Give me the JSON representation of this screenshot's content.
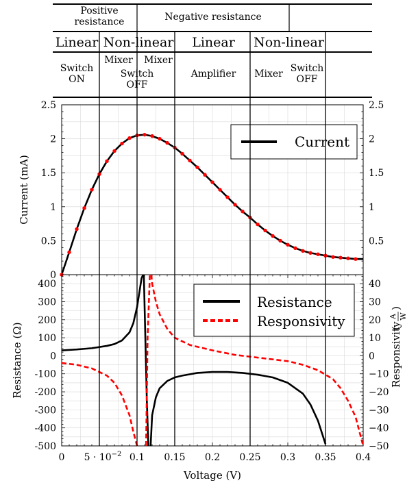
{
  "header": {
    "row1": [
      {
        "id": "positive",
        "text": "Positive resistance"
      },
      {
        "id": "negative",
        "text": "Negative resistance"
      }
    ],
    "row2": [
      "Linear",
      "Non-linear",
      "Linear",
      "Non-linear"
    ],
    "row3": [
      {
        "id": "switch-on",
        "text": "Switch ON"
      },
      {
        "id": "mixer-left",
        "text": "Mixer"
      },
      {
        "id": "mixer-right",
        "text": "Mixer"
      },
      {
        "id": "switch-off-left",
        "text": "Switch OFF"
      },
      {
        "id": "amplifier",
        "text": "Amplifier"
      },
      {
        "id": "mixer-3",
        "text": "Mixer"
      },
      {
        "id": "switch-off-right",
        "text": "Switch OFF"
      }
    ]
  },
  "chart_data": [
    {
      "type": "line",
      "ylabel": "Current (mA)",
      "ylim": [
        0,
        2.5
      ],
      "xlim": [
        0,
        0.4
      ],
      "yticks": [
        "0",
        "0.5",
        "1",
        "1.5",
        "2",
        "2.5"
      ],
      "right_yticks": [
        "0.5",
        "1",
        "1.5",
        "2",
        "2.5"
      ],
      "legend_position": "upper-right",
      "series": [
        {
          "name": "Current",
          "style": "solid",
          "color": "#000000",
          "x": [
            0,
            0.01,
            0.02,
            0.03,
            0.04,
            0.05,
            0.06,
            0.07,
            0.08,
            0.09,
            0.1,
            0.11,
            0.12,
            0.13,
            0.14,
            0.15,
            0.16,
            0.17,
            0.18,
            0.19,
            0.2,
            0.21,
            0.22,
            0.23,
            0.24,
            0.25,
            0.26,
            0.27,
            0.28,
            0.29,
            0.3,
            0.31,
            0.32,
            0.33,
            0.34,
            0.35,
            0.36,
            0.37,
            0.38,
            0.39,
            0.4
          ],
          "values": [
            0,
            0.33,
            0.67,
            0.98,
            1.25,
            1.48,
            1.67,
            1.82,
            1.93,
            2.01,
            2.05,
            2.06,
            2.04,
            2.0,
            1.94,
            1.87,
            1.78,
            1.68,
            1.58,
            1.47,
            1.36,
            1.25,
            1.14,
            1.03,
            0.93,
            0.84,
            0.74,
            0.65,
            0.57,
            0.5,
            0.44,
            0.39,
            0.35,
            0.32,
            0.3,
            0.28,
            0.26,
            0.25,
            0.24,
            0.23,
            0.23
          ]
        },
        {
          "name": "",
          "style": "markers",
          "color": "#ff0000",
          "x": [
            0,
            0.01,
            0.02,
            0.03,
            0.04,
            0.05,
            0.06,
            0.07,
            0.08,
            0.09,
            0.1,
            0.11,
            0.12,
            0.13,
            0.14,
            0.15,
            0.16,
            0.17,
            0.18,
            0.19,
            0.2,
            0.21,
            0.22,
            0.23,
            0.24,
            0.25,
            0.26,
            0.27,
            0.28,
            0.29,
            0.3,
            0.31,
            0.32,
            0.33,
            0.34,
            0.35,
            0.36,
            0.37,
            0.38,
            0.39
          ],
          "values": [
            0,
            0.33,
            0.67,
            0.98,
            1.25,
            1.48,
            1.67,
            1.82,
            1.93,
            2.01,
            2.05,
            2.06,
            2.04,
            2.0,
            1.94,
            1.87,
            1.78,
            1.68,
            1.58,
            1.47,
            1.36,
            1.25,
            1.14,
            1.03,
            0.93,
            0.84,
            0.74,
            0.65,
            0.57,
            0.5,
            0.44,
            0.39,
            0.35,
            0.32,
            0.3,
            0.28,
            0.26,
            0.25,
            0.24,
            0.23
          ]
        }
      ]
    },
    {
      "type": "line",
      "xlabel": "Voltage (V)",
      "ylabel": "Resistance (Ω)",
      "right_ylabel_text": "Responsivity",
      "right_ylabel_unit_num": "A",
      "right_ylabel_unit_den": "W",
      "ylim": [
        -500,
        450
      ],
      "right_ylim": [
        -50,
        45
      ],
      "xlim": [
        0,
        0.4
      ],
      "yticks": [
        "400",
        "300",
        "200",
        "100",
        "0",
        "-100",
        "-200",
        "-300",
        "-400",
        "-500"
      ],
      "right_yticks": [
        "40",
        "30",
        "20",
        "10",
        "0",
        "−10",
        "−20",
        "−30",
        "−40",
        "−50"
      ],
      "xticks": [
        "0",
        "5 · 10",
        "0.1",
        "0.15",
        "0.2",
        "0.25",
        "0.3",
        "0.35",
        "0.4"
      ],
      "xtick_exponent": "−2",
      "legend_position": "upper-right",
      "series": [
        {
          "name": "Resistance",
          "style": "solid",
          "color": "#000000",
          "segments": [
            {
              "x": [
                0,
                0.02,
                0.04,
                0.06,
                0.07,
                0.08,
                0.09,
                0.095,
                0.1,
                0.103,
                0.106,
                0.108
              ],
              "values": [
                30,
                35,
                42,
                55,
                65,
                85,
                130,
                180,
                270,
                350,
                430,
                450
              ]
            },
            {
              "x": [
                0.109,
                0.111,
                0.113,
                0.115
              ],
              "values": [
                450,
                100,
                -250,
                -500
              ]
            },
            {
              "x": [
                0.118,
                0.12,
                0.125,
                0.13,
                0.14,
                0.15,
                0.16,
                0.18,
                0.2,
                0.22,
                0.24,
                0.26,
                0.28,
                0.3,
                0.32,
                0.33,
                0.34,
                0.35
              ],
              "values": [
                -500,
                -330,
                -230,
                -180,
                -140,
                -120,
                -110,
                -95,
                -90,
                -90,
                -95,
                -105,
                -120,
                -150,
                -210,
                -270,
                -360,
                -490
              ]
            }
          ]
        },
        {
          "name": "Responsivity",
          "style": "dashed",
          "color": "#ff0000",
          "segments": [
            {
              "x": [
                0,
                0.02,
                0.04,
                0.06,
                0.07,
                0.08,
                0.09,
                0.095,
                0.1
              ],
              "values": [
                -4,
                -5,
                -7,
                -11,
                -15,
                -22,
                -33,
                -42,
                -50
              ]
            },
            {
              "x": [
                0.112,
                0.114,
                0.117
              ],
              "values": [
                -50,
                10,
                45
              ]
            },
            {
              "x": [
                0.119,
                0.12,
                0.125,
                0.13,
                0.14,
                0.15,
                0.17,
                0.2,
                0.23,
                0.25,
                0.27,
                0.3,
                0.32,
                0.34,
                0.36,
                0.37,
                0.38,
                0.39,
                0.395,
                0.4
              ],
              "values": [
                45,
                40,
                30,
                23,
                15,
                10,
                6,
                3,
                0.5,
                -0.5,
                -1.5,
                -3,
                -5,
                -8,
                -13,
                -18,
                -25,
                -34,
                -42,
                -50
              ]
            }
          ]
        }
      ]
    }
  ]
}
